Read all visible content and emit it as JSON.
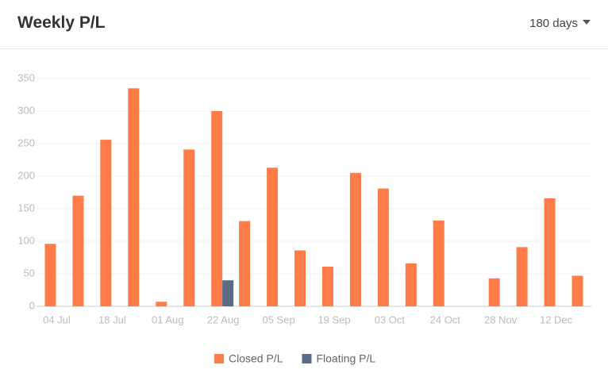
{
  "header": {
    "title": "Weekly P/L",
    "range": "180 days"
  },
  "chart_data": {
    "type": "bar",
    "categories": [
      "04 Jul",
      null,
      "18 Jul",
      null,
      "01 Aug",
      null,
      "22 Aug",
      null,
      "05 Sep",
      null,
      "19 Sep",
      null,
      "03 Oct",
      null,
      "24 Oct",
      null,
      "28 Nov",
      null,
      "12 Dec",
      null
    ],
    "series": [
      {
        "name": "Closed P/L",
        "color": "#ff7b48",
        "values": [
          96,
          170,
          256,
          335,
          7,
          241,
          300,
          131,
          213,
          86,
          61,
          205,
          181,
          66,
          132,
          null,
          43,
          91,
          166,
          47
        ]
      },
      {
        "name": "Floating P/L",
        "color": "#5a6b85",
        "values": [
          null,
          null,
          null,
          null,
          null,
          null,
          40,
          null,
          null,
          null,
          null,
          null,
          null,
          null,
          null,
          null,
          null,
          null,
          null,
          null
        ]
      }
    ],
    "ylim": [
      0,
      350
    ],
    "yticks": [
      0,
      50,
      100,
      150,
      200,
      250,
      300,
      350
    ],
    "grid": true
  }
}
